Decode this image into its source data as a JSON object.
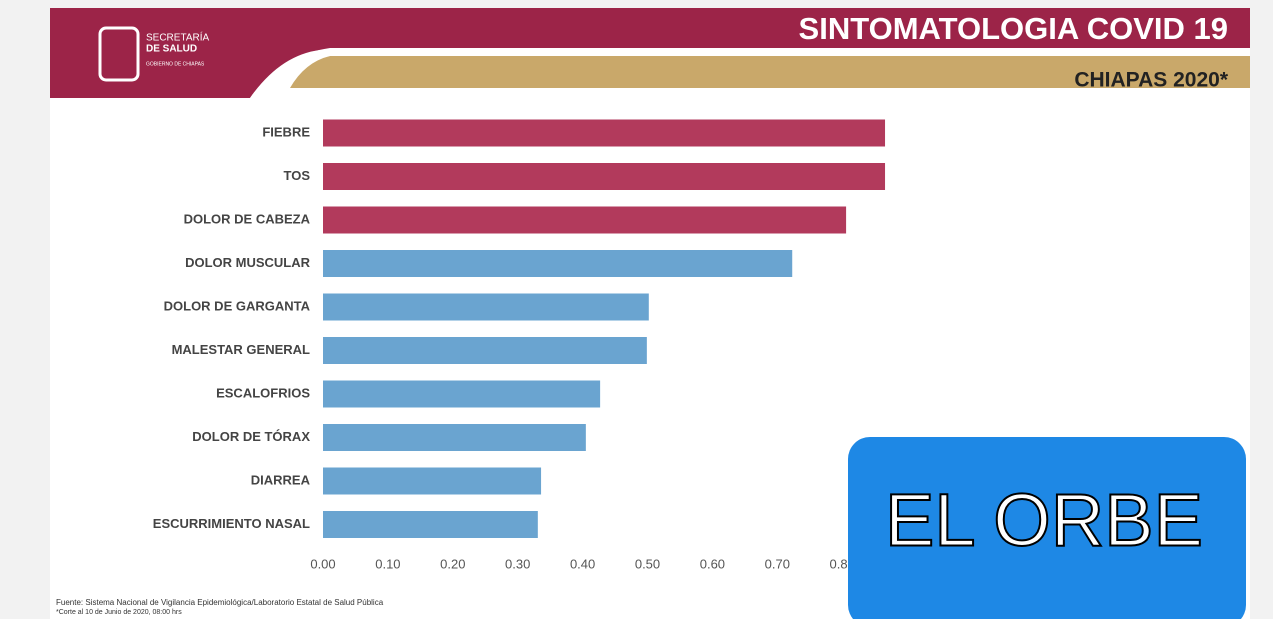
{
  "chart_data": {
    "type": "barh",
    "title": "SINTOMATOLOGIA COVID 19",
    "subtitle": "CHIAPAS 2020*",
    "categories": [
      "FIEBRE",
      "TOS",
      "DOLOR DE CABEZA",
      "DOLOR MUSCULAR",
      "DOLOR DE GARGANTA",
      "MALESTAR GENERAL",
      "ESCALOFRIOS",
      "DOLOR DE TÓRAX",
      "DIARREA",
      "ESCURRIMIENTO NASAL"
    ],
    "values": [
      0.866,
      0.866,
      0.806,
      0.723,
      0.502,
      0.499,
      0.427,
      0.405,
      0.336,
      0.331
    ],
    "colors": [
      "#b23a5c",
      "#b23a5c",
      "#b23a5c",
      "#6aa4d0",
      "#6aa4d0",
      "#6aa4d0",
      "#6aa4d0",
      "#6aa4d0",
      "#6aa4d0",
      "#6aa4d0"
    ],
    "xlim": [
      0,
      0.9
    ],
    "xticks": [
      {
        "value": 0,
        "label": "0.00"
      },
      {
        "value": 0.1,
        "label": "0.10"
      },
      {
        "value": 0.2,
        "label": "0.20"
      },
      {
        "value": 0.3,
        "label": "0.30"
      },
      {
        "value": 0.4,
        "label": "0.40"
      },
      {
        "value": 0.5,
        "label": "0.50"
      },
      {
        "value": 0.6,
        "label": "0.60"
      },
      {
        "value": 0.7,
        "label": "0.70"
      },
      {
        "value": 0.8,
        "label": "0.80"
      }
    ],
    "grid": false
  },
  "logo": {
    "line1": "SECRETARÍA",
    "line2": "DE SALUD",
    "line3": "GOBIERNO DE CHIAPAS"
  },
  "footnotes": [
    "Fuente: Sistema Nacional de Vigilancia Epidemiológica/Laboratorio Estatal de Salud Pública",
    "*Corte al 10 de Junio de 2020, 08:00 hrs"
  ],
  "overlay": {
    "text": "EL ORBE"
  }
}
